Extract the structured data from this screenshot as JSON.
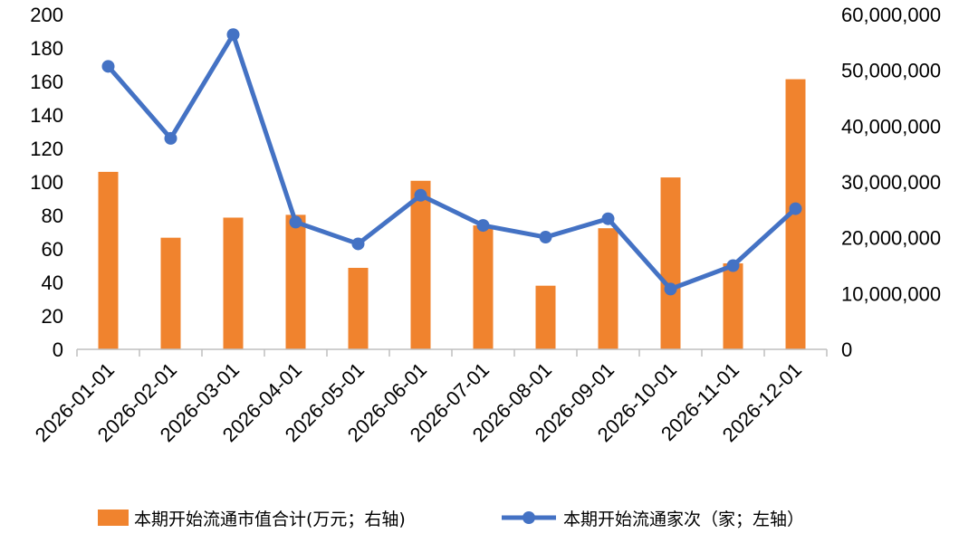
{
  "chart_data": {
    "type": "bar+line",
    "categories": [
      "2026-01-01",
      "2026-02-01",
      "2026-03-01",
      "2026-04-01",
      "2026-05-01",
      "2026-06-01",
      "2026-07-01",
      "2026-08-01",
      "2026-09-01",
      "2026-10-01",
      "2026-11-01",
      "2026-12-01"
    ],
    "series": [
      {
        "name": "本期开始流通市值合计(万元；右轴)",
        "type": "bar",
        "axis": "right",
        "color": "#F0832E",
        "values": [
          31800000,
          20000000,
          23600000,
          24100000,
          14600000,
          30200000,
          22200000,
          11400000,
          21700000,
          30800000,
          15400000,
          48400000
        ]
      },
      {
        "name": "本期开始流通家次（家；左轴）",
        "type": "line",
        "axis": "left",
        "color": "#4472C4",
        "values": [
          169,
          126,
          188,
          76,
          63,
          92,
          74,
          67,
          78,
          36,
          50,
          84
        ]
      }
    ],
    "left_axis": {
      "min": 0,
      "max": 200,
      "step": 20,
      "ticks": [
        "0",
        "20",
        "40",
        "60",
        "80",
        "100",
        "120",
        "140",
        "160",
        "180",
        "200"
      ]
    },
    "right_axis": {
      "min": 0,
      "max": 60000000,
      "step": 10000000,
      "ticks": [
        "0",
        "10,000,000",
        "20,000,000",
        "30,000,000",
        "40,000,000",
        "50,000,000",
        "60,000,000"
      ]
    },
    "grid": false,
    "legend": "bottom"
  }
}
